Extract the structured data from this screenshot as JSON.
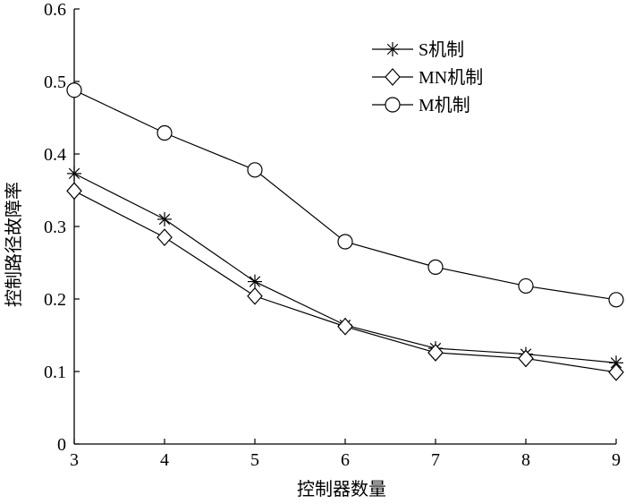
{
  "chart_data": {
    "type": "line",
    "xlabel": "控制器数量",
    "ylabel": "控制路径故障率",
    "x": [
      3,
      4,
      5,
      6,
      7,
      8,
      9
    ],
    "xlim": [
      3,
      9
    ],
    "ylim": [
      0,
      0.6
    ],
    "xticks": [
      "3",
      "4",
      "5",
      "6",
      "7",
      "8",
      "9"
    ],
    "yticks": [
      "0",
      "0.1",
      "0.2",
      "0.3",
      "0.4",
      "0.5",
      "0.6"
    ],
    "grid": false,
    "legend_position": "top-right",
    "series": [
      {
        "name": "S机制",
        "marker": "asterisk",
        "values": [
          0.373,
          0.31,
          0.224,
          0.164,
          0.132,
          0.124,
          0.112
        ]
      },
      {
        "name": "MN机制",
        "marker": "diamond",
        "values": [
          0.349,
          0.285,
          0.204,
          0.162,
          0.126,
          0.118,
          0.099
        ]
      },
      {
        "name": "M机制",
        "marker": "circle",
        "values": [
          0.488,
          0.429,
          0.378,
          0.279,
          0.244,
          0.218,
          0.199
        ]
      }
    ]
  }
}
